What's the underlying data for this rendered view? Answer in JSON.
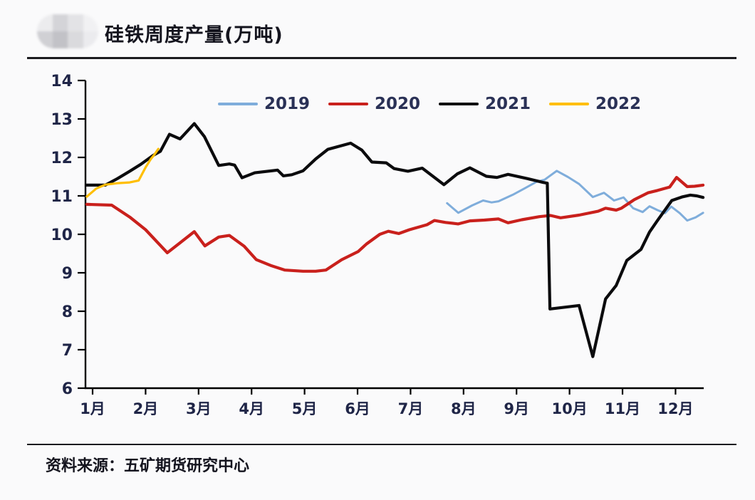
{
  "header": {
    "title": "硅铁周度产量(万吨)"
  },
  "footer": {
    "source": "资料来源：五矿期货研究中心"
  },
  "colors": {
    "background": "#fafafb",
    "axis": "#000000",
    "tick_label_text": "#1f2547",
    "title_text": "#14141e",
    "legend_text": "#2a3156"
  },
  "chart_data": {
    "type": "line",
    "title": "硅铁周度产量(万吨)",
    "unit": "万吨",
    "grid": false,
    "legend_position": "top",
    "x_axis": {
      "tick_labels": [
        "1月",
        "2月",
        "3月",
        "4月",
        "5月",
        "6月",
        "7月",
        "8月",
        "9月",
        "10月",
        "11月",
        "12月"
      ],
      "range": [
        0.85,
        12.6
      ]
    },
    "y_axis": {
      "ticks": [
        6,
        7,
        8,
        9,
        10,
        11,
        12,
        13,
        14
      ],
      "range": [
        6,
        14
      ]
    },
    "series": [
      {
        "name": "2019",
        "color": "#7faddb",
        "x": [
          7.69,
          7.9,
          8.16,
          8.37,
          8.53,
          8.66,
          8.93,
          9.16,
          9.37,
          9.53,
          9.76,
          9.97,
          10.18,
          10.44,
          10.65,
          10.84,
          11.02,
          11.2,
          11.38,
          11.51,
          11.66,
          11.8,
          11.92,
          12.08,
          12.22,
          12.38,
          12.52
        ],
        "y": [
          10.81,
          10.56,
          10.75,
          10.88,
          10.83,
          10.86,
          11.03,
          11.2,
          11.36,
          11.42,
          11.65,
          11.49,
          11.31,
          10.97,
          11.08,
          10.88,
          10.96,
          10.68,
          10.58,
          10.73,
          10.63,
          10.55,
          10.72,
          10.55,
          10.36,
          10.44,
          10.56
        ]
      },
      {
        "name": "2020",
        "color": "#c9201c",
        "x": [
          0.89,
          1.36,
          1.7,
          2.0,
          2.41,
          2.92,
          3.12,
          3.38,
          3.58,
          3.86,
          4.09,
          4.36,
          4.63,
          4.97,
          5.21,
          5.4,
          5.7,
          6.01,
          6.17,
          6.42,
          6.58,
          6.78,
          6.98,
          7.31,
          7.45,
          7.66,
          7.9,
          8.12,
          8.39,
          8.66,
          8.84,
          9.1,
          9.43,
          9.64,
          9.83,
          10.18,
          10.54,
          10.68,
          10.88,
          10.98,
          11.22,
          11.48,
          11.66,
          11.89,
          12.02,
          12.22,
          12.36,
          12.52
        ],
        "y": [
          10.78,
          10.76,
          10.45,
          10.12,
          9.52,
          10.07,
          9.7,
          9.93,
          9.97,
          9.69,
          9.34,
          9.19,
          9.07,
          9.04,
          9.04,
          9.07,
          9.34,
          9.55,
          9.75,
          10.0,
          10.08,
          10.02,
          10.12,
          10.25,
          10.36,
          10.31,
          10.27,
          10.35,
          10.37,
          10.4,
          10.3,
          10.38,
          10.46,
          10.49,
          10.43,
          10.5,
          10.6,
          10.68,
          10.63,
          10.68,
          10.9,
          11.08,
          11.14,
          11.23,
          11.48,
          11.24,
          11.25,
          11.28
        ]
      },
      {
        "name": "2021",
        "color": "#0b0b0d",
        "x": [
          0.89,
          1.24,
          1.47,
          1.7,
          1.91,
          2.14,
          2.28,
          2.45,
          2.65,
          2.92,
          3.11,
          3.38,
          3.58,
          3.68,
          3.82,
          4.06,
          4.49,
          4.6,
          4.76,
          4.97,
          5.21,
          5.44,
          5.87,
          6.08,
          6.27,
          6.54,
          6.69,
          6.95,
          7.22,
          7.63,
          7.88,
          8.12,
          8.43,
          8.63,
          8.84,
          9.2,
          9.5,
          9.58,
          9.63,
          10.18,
          10.44,
          10.68,
          10.88,
          11.08,
          11.35,
          11.51,
          11.66,
          11.93,
          12.12,
          12.28,
          12.4,
          12.52
        ],
        "y": [
          11.28,
          11.28,
          11.45,
          11.64,
          11.82,
          12.05,
          12.16,
          12.6,
          12.48,
          12.88,
          12.54,
          11.79,
          11.83,
          11.8,
          11.47,
          11.6,
          11.67,
          11.52,
          11.55,
          11.65,
          11.96,
          12.21,
          12.37,
          12.19,
          11.88,
          11.86,
          11.71,
          11.64,
          11.72,
          11.29,
          11.57,
          11.73,
          11.51,
          11.48,
          11.56,
          11.45,
          11.35,
          11.33,
          8.06,
          8.15,
          6.82,
          8.32,
          8.67,
          9.32,
          9.61,
          10.06,
          10.36,
          10.88,
          10.97,
          11.02,
          11.0,
          10.96
        ]
      },
      {
        "name": "2022",
        "color": "#ffbe00",
        "x": [
          0.89,
          1.07,
          1.24,
          1.47,
          1.7,
          1.87,
          2.0,
          2.1,
          2.17,
          2.24
        ],
        "y": [
          10.98,
          11.19,
          11.29,
          11.33,
          11.35,
          11.4,
          11.74,
          11.96,
          12.08,
          12.22
        ]
      }
    ]
  }
}
